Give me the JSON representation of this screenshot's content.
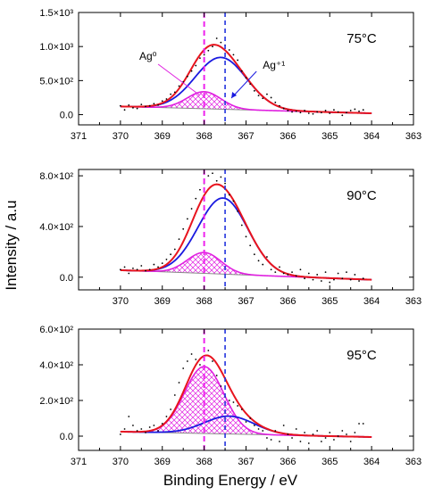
{
  "figure": {
    "ylabel": "Intensity / a.u",
    "xlabel": "Binding Energy / eV",
    "colors": {
      "fit_total": "#e8141e",
      "ag_plus": "#1a1ae0",
      "ag0": "#e020e0",
      "background": "#888888",
      "data": "#000000",
      "ref_ag0_line": "#ee22ee",
      "ref_agplus_line": "#2233dd"
    }
  },
  "chart_data": [
    {
      "type": "line",
      "title": "75°C",
      "xlim": [
        371,
        363
      ],
      "x_ticks": [
        "371",
        "370",
        "369",
        "368",
        "367",
        "366",
        "365",
        "364",
        "363"
      ],
      "ylim": [
        -150,
        1500
      ],
      "y_ticks": [
        {
          "value": 0,
          "label": "0.0"
        },
        {
          "value": 500,
          "label": "5.0×10²"
        },
        {
          "value": 1000,
          "label": "1.0×10³"
        },
        {
          "value": 1500,
          "label": "1.5×10³"
        }
      ],
      "annotations": [
        {
          "text": "Ag⁰",
          "color": "#e020e0"
        },
        {
          "text": "Ag⁺¹",
          "color": "#1a1ae0"
        }
      ],
      "peaks": {
        "ag0": {
          "center": 368.0,
          "height": 250,
          "fwhm": 0.95
        },
        "ag_plus": {
          "center": 367.6,
          "height": 760,
          "fwhm": 1.45
        }
      },
      "baseline": {
        "x": [
          370,
          364
        ],
        "y": [
          120,
          20
        ]
      },
      "scatter": {
        "x": [
          370.0,
          369.9,
          369.8,
          369.7,
          369.6,
          369.5,
          369.4,
          369.3,
          369.2,
          369.1,
          369.0,
          368.9,
          368.8,
          368.7,
          368.6,
          368.5,
          368.4,
          368.3,
          368.2,
          368.1,
          368.0,
          367.9,
          367.8,
          367.7,
          367.6,
          367.5,
          367.4,
          367.3,
          367.2,
          367.1,
          367.0,
          366.9,
          366.8,
          366.7,
          366.6,
          366.5,
          366.4,
          366.3,
          366.2,
          366.1,
          366.0,
          365.9,
          365.8,
          365.7,
          365.6,
          365.5,
          365.4,
          365.3,
          365.2,
          365.1,
          365.0,
          364.9,
          364.8,
          364.7,
          364.6,
          364.5,
          364.4,
          364.3,
          364.2
        ],
        "y": [
          130,
          70,
          140,
          100,
          90,
          150,
          120,
          130,
          160,
          140,
          200,
          230,
          300,
          330,
          420,
          480,
          560,
          640,
          720,
          830,
          880,
          940,
          1000,
          1120,
          1060,
          1020,
          950,
          880,
          800,
          640,
          540,
          450,
          350,
          280,
          240,
          300,
          250,
          180,
          130,
          90,
          60,
          40,
          50,
          30,
          60,
          20,
          10,
          40,
          30,
          60,
          20,
          70,
          40,
          -10,
          30,
          60,
          80,
          50,
          70
        ]
      },
      "reference_lines": [
        368.0,
        367.5
      ]
    },
    {
      "type": "line",
      "title": "90°C",
      "xlim": [
        371,
        363
      ],
      "x_ticks": [
        "370",
        "369",
        "368",
        "367",
        "366",
        "365",
        "364",
        "363"
      ],
      "ylim": [
        -100,
        850
      ],
      "y_ticks": [
        {
          "value": 0,
          "label": "0.0"
        },
        {
          "value": 400,
          "label": "4.0×10²"
        },
        {
          "value": 800,
          "label": "8.0×10²"
        }
      ],
      "annotations": [],
      "peaks": {
        "ag0": {
          "center": 368.0,
          "height": 165,
          "fwhm": 0.95
        },
        "ag_plus": {
          "center": 367.55,
          "height": 600,
          "fwhm": 1.4
        }
      },
      "baseline": {
        "x": [
          370,
          364
        ],
        "y": [
          55,
          -20
        ]
      },
      "scatter": {
        "x": [
          370.0,
          369.9,
          369.8,
          369.7,
          369.6,
          369.5,
          369.4,
          369.3,
          369.2,
          369.1,
          369.0,
          368.9,
          368.8,
          368.7,
          368.6,
          368.5,
          368.4,
          368.3,
          368.2,
          368.1,
          368.0,
          367.9,
          367.8,
          367.7,
          367.6,
          367.5,
          367.4,
          367.3,
          367.2,
          367.1,
          367.0,
          366.9,
          366.8,
          366.7,
          366.6,
          366.5,
          366.4,
          366.3,
          366.2,
          366.1,
          366.0,
          365.9,
          365.8,
          365.7,
          365.6,
          365.5,
          365.4,
          365.3,
          365.2,
          365.1,
          365.0,
          364.9,
          364.8,
          364.7,
          364.6,
          364.5,
          364.4,
          364.3,
          364.2
        ],
        "y": [
          60,
          80,
          30,
          70,
          60,
          90,
          50,
          60,
          100,
          80,
          110,
          140,
          180,
          220,
          300,
          380,
          460,
          540,
          620,
          690,
          740,
          800,
          820,
          760,
          790,
          740,
          650,
          600,
          520,
          410,
          320,
          250,
          180,
          130,
          100,
          160,
          60,
          40,
          80,
          30,
          20,
          40,
          10,
          60,
          -10,
          30,
          -20,
          20,
          -30,
          40,
          -40,
          -20,
          30,
          -10,
          40,
          -20,
          20,
          -30,
          -10
        ]
      },
      "reference_lines": [
        368.0,
        367.5
      ]
    },
    {
      "type": "line",
      "title": "95°C",
      "xlim": [
        371,
        363
      ],
      "x_ticks": [
        "371",
        "370",
        "369",
        "368",
        "367",
        "366",
        "365",
        "364",
        "363"
      ],
      "ylim": [
        -80,
        600
      ],
      "y_ticks": [
        {
          "value": 0,
          "label": "0.0"
        },
        {
          "value": 200,
          "label": "2.0×10²"
        },
        {
          "value": 400,
          "label": "4.0×10²"
        },
        {
          "value": 600,
          "label": "6.0×10²"
        }
      ],
      "annotations": [],
      "peaks": {
        "ag0": {
          "center": 368.0,
          "height": 375,
          "fwhm": 1.1
        },
        "ag_plus": {
          "center": 367.4,
          "height": 100,
          "fwhm": 1.4
        }
      },
      "baseline": {
        "x": [
          370,
          364
        ],
        "y": [
          25,
          -5
        ]
      },
      "scatter": {
        "x": [
          370.0,
          369.9,
          369.8,
          369.7,
          369.6,
          369.5,
          369.4,
          369.3,
          369.2,
          369.1,
          369.0,
          368.9,
          368.8,
          368.7,
          368.6,
          368.5,
          368.4,
          368.3,
          368.2,
          368.1,
          368.0,
          367.9,
          367.8,
          367.7,
          367.6,
          367.5,
          367.4,
          367.3,
          367.2,
          367.1,
          367.0,
          366.9,
          366.8,
          366.7,
          366.6,
          366.5,
          366.4,
          366.3,
          366.2,
          366.1,
          366.0,
          365.9,
          365.8,
          365.7,
          365.6,
          365.5,
          365.4,
          365.3,
          365.2,
          365.1,
          365.0,
          364.9,
          364.8,
          364.7,
          364.6,
          364.5,
          364.4,
          364.3,
          364.2
        ],
        "y": [
          10,
          40,
          110,
          60,
          30,
          40,
          20,
          50,
          60,
          30,
          70,
          110,
          150,
          230,
          300,
          380,
          420,
          460,
          430,
          400,
          440,
          480,
          420,
          340,
          280,
          220,
          200,
          190,
          170,
          150,
          80,
          100,
          60,
          40,
          30,
          -10,
          -20,
          30,
          -30,
          60,
          10,
          -10,
          40,
          -30,
          20,
          -40,
          10,
          30,
          -30,
          -10,
          20,
          -20,
          0,
          30,
          10,
          -30,
          20,
          70,
          70
        ]
      },
      "reference_lines": [
        368.0,
        367.5
      ]
    }
  ]
}
